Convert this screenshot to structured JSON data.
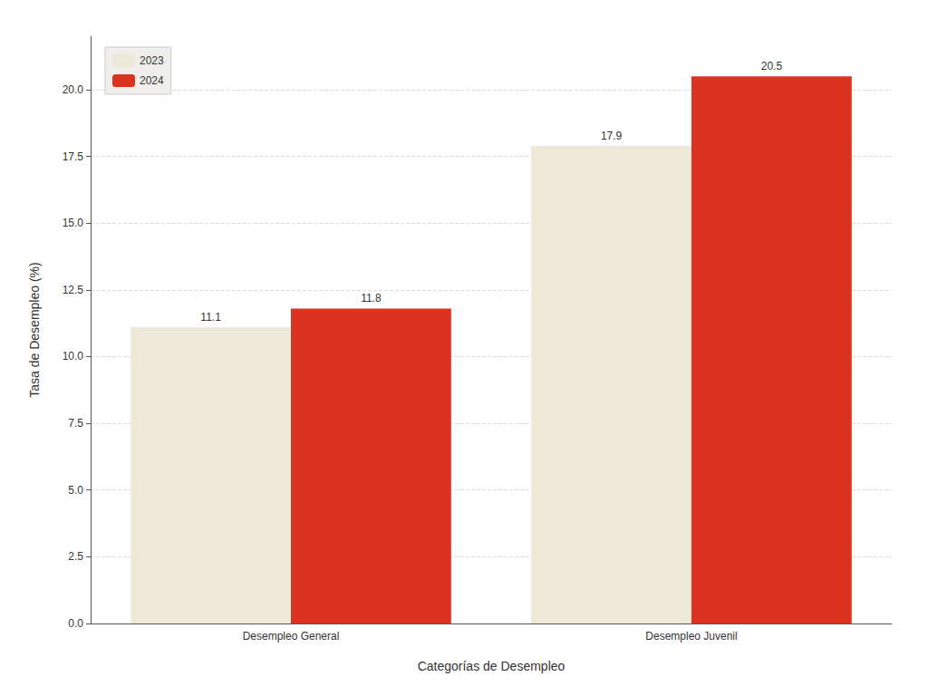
{
  "chart_data": {
    "type": "bar",
    "categories": [
      "Desempleo General",
      "Desempleo Juvenil"
    ],
    "series": [
      {
        "name": "2023",
        "color": "#ede8d8",
        "values": [
          11.1,
          17.9
        ]
      },
      {
        "name": "2024",
        "color": "#dc3220",
        "values": [
          11.8,
          20.5
        ]
      }
    ],
    "xlabel": "Categorías de Desempleo",
    "ylabel": "Tasa de Desempleo (%)",
    "ylim": [
      0,
      22
    ],
    "yticks": [
      {
        "value": 0,
        "label": "0.0"
      },
      2.5,
      {
        "value": 5,
        "label": "5.0"
      },
      7.5,
      {
        "value": 10,
        "label": "10.0"
      },
      12.5,
      {
        "value": 15,
        "label": "15.0"
      },
      17.5,
      {
        "value": 20,
        "label": "20.0"
      }
    ],
    "grid": true,
    "legend": "upper left",
    "data_labels": true
  }
}
